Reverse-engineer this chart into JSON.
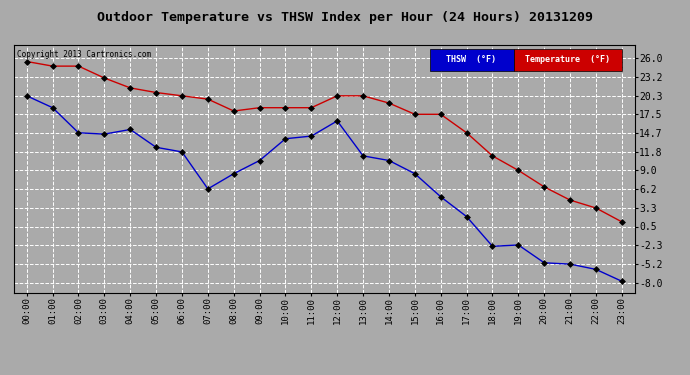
{
  "title": "Outdoor Temperature vs THSW Index per Hour (24 Hours) 20131209",
  "copyright": "Copyright 2013 Cartronics.com",
  "hours": [
    "00:00",
    "01:00",
    "02:00",
    "03:00",
    "04:00",
    "05:00",
    "06:00",
    "07:00",
    "08:00",
    "09:00",
    "10:00",
    "11:00",
    "12:00",
    "13:00",
    "14:00",
    "15:00",
    "16:00",
    "17:00",
    "18:00",
    "19:00",
    "20:00",
    "21:00",
    "22:00",
    "23:00"
  ],
  "temperature": [
    25.5,
    24.8,
    24.8,
    23.0,
    21.5,
    20.8,
    20.3,
    19.8,
    18.0,
    18.5,
    18.5,
    18.5,
    20.3,
    20.3,
    19.2,
    17.5,
    17.5,
    14.7,
    11.2,
    9.0,
    6.5,
    4.5,
    3.3,
    1.2
  ],
  "thsw": [
    20.3,
    18.5,
    14.7,
    14.5,
    15.2,
    12.5,
    11.8,
    6.2,
    8.5,
    10.5,
    13.8,
    14.2,
    16.5,
    11.2,
    10.5,
    8.5,
    5.0,
    2.0,
    -2.5,
    -2.3,
    -5.0,
    -5.2,
    -6.0,
    -7.8
  ],
  "ylim_min": -9.5,
  "ylim_max": 28.0,
  "yticks": [
    26.0,
    23.2,
    20.3,
    17.5,
    14.7,
    11.8,
    9.0,
    6.2,
    3.3,
    0.5,
    -2.3,
    -5.2,
    -8.0
  ],
  "temp_color": "#cc0000",
  "thsw_color": "#0000cc",
  "bg_color": "#aaaaaa",
  "plot_bg_color": "#aaaaaa",
  "grid_color": "white",
  "title_fontsize": 10,
  "legend_thsw_bg": "#0000cc",
  "legend_temp_bg": "#cc0000"
}
